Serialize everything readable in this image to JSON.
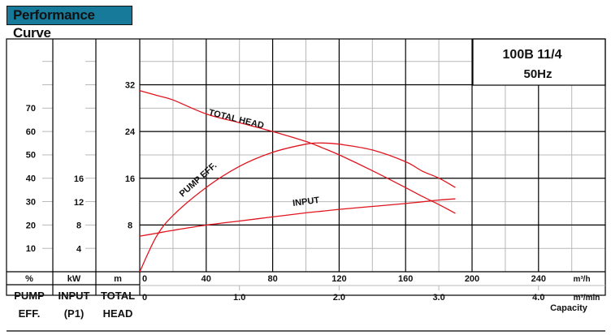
{
  "header": {
    "title": "Performance Curve"
  },
  "model": {
    "name": "100B  11/4",
    "frequency": "50Hz"
  },
  "left_axes": {
    "eff": {
      "unit": "%",
      "label1": "PUMP",
      "label2": "EFF.",
      "ticks": [
        "70",
        "60",
        "50",
        "40",
        "30",
        "20",
        "10"
      ]
    },
    "input": {
      "unit": "kW",
      "label1": "INPUT",
      "label2": "(P1)",
      "ticks": [
        "16",
        "12",
        "8",
        "4"
      ]
    },
    "head": {
      "unit": "m",
      "label1": "TOTAL",
      "label2": "HEAD",
      "ticks": [
        "32",
        "24",
        "16",
        "8"
      ]
    }
  },
  "x_axes": {
    "m3h": {
      "unit": "m³/h",
      "ticks": [
        "0",
        "40",
        "80",
        "120",
        "160",
        "200",
        "240"
      ]
    },
    "m3min": {
      "unit": "m³/min",
      "ticks": [
        "0",
        "1.0",
        "2.0",
        "3.0",
        "4.0"
      ]
    },
    "caption": "Capacity"
  },
  "curve_labels": {
    "head": "TOTAL HEAD",
    "eff": "PUMP EFF.",
    "input": "INPUT"
  },
  "colors": {
    "curve": "#e0141e",
    "title_bg": "#187a9a",
    "grid_minor": "#b8b8b8",
    "grid_major": "#000000"
  },
  "chart_data": {
    "type": "line",
    "title": "Performance Curve — 100B 11/4 50Hz",
    "xlabel": "Capacity (m³/h)",
    "x_secondary_label": "Capacity (m³/min)",
    "xlim": [
      0,
      280
    ],
    "x": [
      0,
      10,
      20,
      40,
      60,
      80,
      100,
      110,
      120,
      140,
      160,
      170,
      180,
      190
    ],
    "series": [
      {
        "name": "TOTAL HEAD",
        "unit": "m",
        "axis": "m",
        "ylim": [
          0,
          40
        ],
        "values": [
          31.0,
          30.2,
          29.4,
          27.0,
          25.5,
          24.0,
          22.3,
          21.2,
          20.0,
          17.3,
          14.4,
          12.9,
          11.5,
          10.0
        ]
      },
      {
        "name": "PUMP EFF.",
        "unit": "%",
        "axis": "%",
        "ylim": [
          0,
          80
        ],
        "values": [
          0,
          15,
          24,
          36,
          45,
          51,
          54.5,
          55,
          54.5,
          52,
          47,
          43,
          40,
          36
        ]
      },
      {
        "name": "INPUT (P1)",
        "unit": "kW",
        "axis": "kW",
        "ylim": [
          0,
          20
        ],
        "values": [
          6.1,
          6.6,
          7.1,
          8.0,
          8.7,
          9.4,
          10.1,
          10.4,
          10.7,
          11.2,
          11.7,
          12.0,
          12.3,
          12.5
        ]
      }
    ],
    "grid": true
  }
}
